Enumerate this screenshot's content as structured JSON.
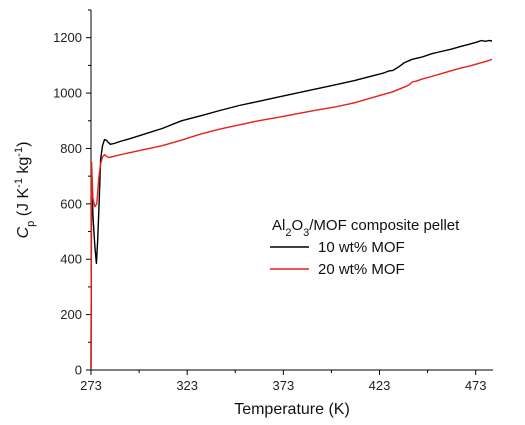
{
  "chart_data": {
    "type": "line",
    "xlabel": "Temperature (K)",
    "ylabel": {
      "parts": [
        {
          "text": "C",
          "style": "italic"
        },
        {
          "text": "p",
          "style": "sub"
        },
        {
          "text": " (J K",
          "style": "normal"
        },
        {
          "text": "-1",
          "style": "sup"
        },
        {
          "text": " kg",
          "style": "normal"
        },
        {
          "text": "-1",
          "style": "sup"
        },
        {
          "text": ")",
          "style": "normal"
        }
      ]
    },
    "xlim": [
      273,
      482
    ],
    "ylim": [
      0,
      1300
    ],
    "x_ticks": [
      273,
      323,
      373,
      423,
      473
    ],
    "x_tick_labels": [
      "273",
      "323",
      "373",
      "423",
      "473"
    ],
    "y_ticks": [
      0,
      200,
      400,
      600,
      800,
      1000,
      1200
    ],
    "y_tick_labels": [
      "0",
      "200",
      "400",
      "600",
      "800",
      "1000",
      "1200"
    ],
    "grid": false,
    "legend": {
      "title_parts": [
        {
          "text": "Al",
          "style": "normal"
        },
        {
          "text": "2",
          "style": "sub"
        },
        {
          "text": "O",
          "style": "normal"
        },
        {
          "text": "3",
          "style": "sub"
        },
        {
          "text": "/MOF composite pellet",
          "style": "normal"
        }
      ],
      "placement": "center-right"
    },
    "series": [
      {
        "name": "10 wt% MOF",
        "color": "#000000",
        "x": [
          273,
          273.3,
          274,
          275,
          275.8,
          276.5,
          277.2,
          278,
          279,
          280,
          281,
          282,
          283,
          285,
          288,
          293,
          300,
          310,
          320,
          330,
          340,
          350,
          360,
          370,
          380,
          390,
          400,
          410,
          420,
          425,
          428,
          430,
          433,
          436,
          440,
          445,
          450,
          455,
          460,
          465,
          470,
          473,
          476,
          478,
          480,
          481.5
        ],
        "y": [
          5,
          720,
          560,
          450,
          385,
          470,
          600,
          760,
          810,
          832,
          830,
          822,
          815,
          818,
          825,
          835,
          850,
          872,
          900,
          918,
          937,
          955,
          970,
          985,
          1000,
          1015,
          1030,
          1045,
          1063,
          1072,
          1080,
          1082,
          1095,
          1110,
          1122,
          1130,
          1142,
          1150,
          1158,
          1168,
          1177,
          1183,
          1190,
          1187,
          1190,
          1188
        ]
      },
      {
        "name": "20 wt% MOF",
        "color": "#e8201c",
        "x": [
          273,
          273.3,
          274,
          275,
          276,
          277,
          278,
          279,
          280,
          281,
          282,
          283,
          285,
          290,
          300,
          310,
          320,
          330,
          340,
          350,
          360,
          370,
          380,
          390,
          400,
          410,
          420,
          430,
          437,
          438.5,
          440,
          442,
          445,
          450,
          455,
          460,
          465,
          470,
          475,
          480,
          481.5
        ],
        "y": [
          5,
          750,
          620,
          590,
          600,
          690,
          745,
          770,
          778,
          772,
          768,
          768,
          772,
          780,
          795,
          810,
          830,
          852,
          870,
          885,
          900,
          912,
          925,
          938,
          950,
          965,
          985,
          1005,
          1025,
          1030,
          1040,
          1043,
          1050,
          1060,
          1070,
          1080,
          1090,
          1098,
          1108,
          1118,
          1122
        ]
      }
    ],
    "annotations": []
  }
}
